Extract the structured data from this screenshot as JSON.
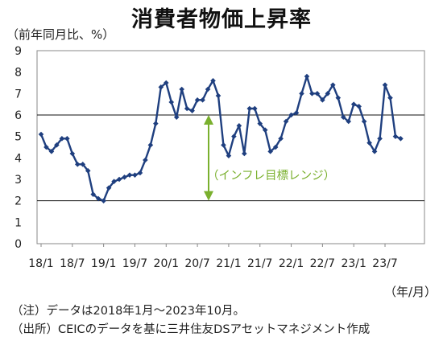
{
  "chart_data": {
    "type": "line",
    "title": "消費者物価上昇率",
    "ylabel": "（前年同月比、%）",
    "xlabel": "（年/月）",
    "ylim": [
      0,
      9
    ],
    "yticks": [
      "0",
      "1",
      "2",
      "3",
      "4",
      "5",
      "6",
      "7",
      "8",
      "9"
    ],
    "x_start": "2018/1",
    "x_end": "2023/10",
    "xtick_labels": [
      "18/1",
      "18/7",
      "19/1",
      "19/7",
      "20/1",
      "20/7",
      "21/1",
      "21/7",
      "22/1",
      "22/7",
      "23/1",
      "23/7"
    ],
    "reference_lines": [
      6,
      2
    ],
    "range_annotation": {
      "label": "（インフレ目標レンジ）",
      "low": 2,
      "high": 6,
      "color": "#7ab02e"
    },
    "series": [
      {
        "color": "#1f3f7f",
        "values": [
          5.1,
          4.5,
          4.3,
          4.6,
          4.9,
          4.9,
          4.2,
          3.7,
          3.7,
          3.4,
          2.3,
          2.1,
          2.0,
          2.6,
          2.9,
          3.0,
          3.1,
          3.2,
          3.2,
          3.3,
          3.9,
          4.6,
          5.6,
          7.3,
          7.5,
          6.6,
          5.9,
          7.2,
          6.3,
          6.2,
          6.7,
          6.7,
          7.2,
          7.6,
          6.9,
          4.6,
          4.1,
          5.0,
          5.5,
          4.2,
          6.3,
          6.3,
          5.6,
          5.3,
          4.3,
          4.5,
          4.9,
          5.7,
          6.0,
          6.1,
          7.0,
          7.8,
          7.0,
          7.0,
          6.7,
          7.0,
          7.4,
          6.8,
          5.9,
          5.7,
          6.5,
          6.4,
          5.7,
          4.7,
          4.3,
          4.9,
          7.4,
          6.8,
          5.0,
          4.9
        ]
      }
    ]
  },
  "notes": {
    "line1": "（注）データは2018年1月～2023年10月。",
    "line2": "（出所）CEICのデータを基に三井住友DSアセットマネジメント作成"
  }
}
